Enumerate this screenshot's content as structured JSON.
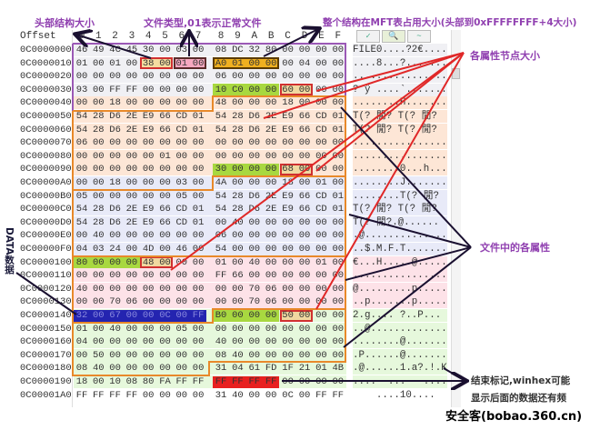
{
  "header": {
    "offset_label": "Offset",
    "columns": [
      "0",
      "1",
      "2",
      "3",
      "4",
      "5",
      "6",
      "7",
      "8",
      "9",
      "A",
      "B",
      "C",
      "D",
      "E",
      "F"
    ]
  },
  "ascii_toolbar": [
    "✓",
    "🔍",
    "~"
  ],
  "rows": [
    {
      "offset": "0C0000000",
      "bytes": [
        "46",
        "49",
        "4C",
        "45",
        "30",
        "00",
        "03",
        "00",
        "08",
        "DC",
        "32",
        "80",
        "00",
        "00",
        "00",
        "00"
      ],
      "ascii": "FILE0....?2€....",
      "bg": "#f0f0f4"
    },
    {
      "offset": "0C0000010",
      "bytes": [
        "01",
        "00",
        "01",
        "00",
        "38",
        "00",
        "01",
        "00",
        "A0",
        "01",
        "00",
        "00",
        "00",
        "04",
        "00",
        "00"
      ],
      "ascii": "....8...?.......",
      "bg": "#f0f0f4"
    },
    {
      "offset": "0C0000020",
      "bytes": [
        "00",
        "00",
        "00",
        "00",
        "00",
        "00",
        "00",
        "00",
        "06",
        "00",
        "00",
        "00",
        "00",
        "00",
        "00",
        "00"
      ],
      "ascii": "................",
      "bg": "#f0f0f4"
    },
    {
      "offset": "0C0000030",
      "bytes": [
        "93",
        "00",
        "FF",
        "FF",
        "00",
        "00",
        "00",
        "00",
        "10",
        "C0",
        "00",
        "00",
        "60",
        "00",
        "00",
        "00"
      ],
      "ascii": "? ÿ ....`.......",
      "bg": "#f0f0f4"
    },
    {
      "offset": "0C0000040",
      "bytes": [
        "00",
        "00",
        "18",
        "00",
        "00",
        "00",
        "00",
        "00",
        "48",
        "00",
        "00",
        "00",
        "18",
        "00",
        "00",
        "00"
      ],
      "ascii": "........H.......",
      "bg": "#fde6d6"
    },
    {
      "offset": "0C0000050",
      "bytes": [
        "54",
        "28",
        "D6",
        "2E",
        "E9",
        "66",
        "CD",
        "01",
        "54",
        "28",
        "D6",
        "2E",
        "E9",
        "66",
        "CD",
        "01"
      ],
      "ascii": "T(? 閒? T(? 閒?",
      "bg": "#fde6d6"
    },
    {
      "offset": "0C0000060",
      "bytes": [
        "54",
        "28",
        "D6",
        "2E",
        "E9",
        "66",
        "CD",
        "01",
        "54",
        "28",
        "D6",
        "2E",
        "E9",
        "66",
        "CD",
        "01"
      ],
      "ascii": "T(? 閒? T(? 閒?",
      "bg": "#fde6d6"
    },
    {
      "offset": "0C0000070",
      "bytes": [
        "06",
        "00",
        "00",
        "00",
        "00",
        "00",
        "00",
        "00",
        "00",
        "00",
        "00",
        "00",
        "00",
        "00",
        "00",
        "00"
      ],
      "ascii": "................",
      "bg": "#fde6d6"
    },
    {
      "offset": "0C0000080",
      "bytes": [
        "00",
        "00",
        "00",
        "00",
        "00",
        "01",
        "00",
        "00",
        "00",
        "00",
        "00",
        "00",
        "00",
        "00",
        "00",
        "00"
      ],
      "ascii": "................",
      "bg": "#fde6d6"
    },
    {
      "offset": "0C0000090",
      "bytes": [
        "00",
        "00",
        "00",
        "00",
        "00",
        "00",
        "00",
        "00",
        "30",
        "00",
        "00",
        "00",
        "68",
        "00",
        "00",
        "00"
      ],
      "ascii": "........0...h...",
      "bg": "#fde6d6"
    },
    {
      "offset": "0C00000A0",
      "bytes": [
        "00",
        "00",
        "18",
        "00",
        "00",
        "00",
        "03",
        "00",
        "4A",
        "00",
        "00",
        "00",
        "18",
        "00",
        "01",
        "00"
      ],
      "ascii": "........J.......",
      "bg": "#e8eaf8"
    },
    {
      "offset": "0C00000B0",
      "bytes": [
        "05",
        "00",
        "00",
        "00",
        "00",
        "00",
        "05",
        "00",
        "54",
        "28",
        "D6",
        "2E",
        "E9",
        "66",
        "CD",
        "01"
      ],
      "ascii": "........T(? 閒?",
      "bg": "#e8eaf8"
    },
    {
      "offset": "0C00000C0",
      "bytes": [
        "54",
        "28",
        "D6",
        "2E",
        "E9",
        "66",
        "CD",
        "01",
        "54",
        "28",
        "D6",
        "2E",
        "E9",
        "66",
        "CD",
        "01"
      ],
      "ascii": "T(? 閒? T(? 閒?",
      "bg": "#e8eaf8"
    },
    {
      "offset": "0C00000D0",
      "bytes": [
        "54",
        "28",
        "D6",
        "2E",
        "E9",
        "66",
        "CD",
        "01",
        "00",
        "40",
        "00",
        "00",
        "00",
        "00",
        "00",
        "00"
      ],
      "ascii": "T(? 閒?.@......",
      "bg": "#e8eaf8"
    },
    {
      "offset": "0C00000E0",
      "bytes": [
        "00",
        "40",
        "00",
        "00",
        "00",
        "00",
        "00",
        "00",
        "06",
        "00",
        "00",
        "00",
        "00",
        "00",
        "00",
        "00"
      ],
      "ascii": ".@..............",
      "bg": "#e8eaf8"
    },
    {
      "offset": "0C00000F0",
      "bytes": [
        "04",
        "03",
        "24",
        "00",
        "4D",
        "00",
        "46",
        "00",
        "54",
        "00",
        "00",
        "00",
        "00",
        "00",
        "00",
        "00"
      ],
      "ascii": "..$.M.F.T.......",
      "bg": "#e8eaf8"
    },
    {
      "offset": "0C0000100",
      "bytes": [
        "80",
        "00",
        "00",
        "00",
        "48",
        "00",
        "00",
        "00",
        "01",
        "00",
        "40",
        "00",
        "00",
        "00",
        "01",
        "00"
      ],
      "ascii": "€...H.....@.....",
      "bg": "#fde2e8"
    },
    {
      "offset": "0C0000110",
      "bytes": [
        "00",
        "00",
        "00",
        "00",
        "00",
        "00",
        "00",
        "00",
        "FF",
        "66",
        "00",
        "00",
        "00",
        "00",
        "00",
        "00"
      ],
      "ascii": "................",
      "bg": "#fde2e8"
    },
    {
      "offset": "0C0000120",
      "bytes": [
        "40",
        "00",
        "00",
        "00",
        "00",
        "00",
        "00",
        "00",
        "00",
        "00",
        "70",
        "06",
        "00",
        "00",
        "00",
        "00"
      ],
      "ascii": "@.........p.....",
      "bg": "#fde2e8"
    },
    {
      "offset": "0C0000130",
      "bytes": [
        "00",
        "00",
        "70",
        "06",
        "00",
        "00",
        "00",
        "00",
        "00",
        "00",
        "70",
        "06",
        "00",
        "00",
        "00",
        "00"
      ],
      "ascii": "..p.......p.....",
      "bg": "#fde2e8"
    },
    {
      "offset": "0C0000140",
      "bytes": [
        "32",
        "00",
        "67",
        "00",
        "00",
        "0C",
        "00",
        "FF",
        "B0",
        "00",
        "00",
        "00",
        "50",
        "00",
        "00",
        "00"
      ],
      "ascii": "2.g.... ?..P...",
      "bg": "#e6f8dc"
    },
    {
      "offset": "0C0000150",
      "bytes": [
        "01",
        "00",
        "40",
        "00",
        "00",
        "00",
        "05",
        "00",
        "00",
        "00",
        "00",
        "00",
        "00",
        "00",
        "00",
        "00"
      ],
      "ascii": "..@.............",
      "bg": "#e6f8dc"
    },
    {
      "offset": "0C0000160",
      "bytes": [
        "04",
        "00",
        "00",
        "00",
        "00",
        "00",
        "00",
        "00",
        "40",
        "00",
        "00",
        "00",
        "00",
        "00",
        "00",
        "00"
      ],
      "ascii": "........@.......",
      "bg": "#e6f8dc"
    },
    {
      "offset": "0C0000170",
      "bytes": [
        "00",
        "50",
        "00",
        "00",
        "00",
        "00",
        "00",
        "00",
        "08",
        "40",
        "00",
        "00",
        "00",
        "00",
        "00",
        "00"
      ],
      "ascii": ".P......@.......",
      "bg": "#e6f8dc"
    },
    {
      "offset": "0C0000180",
      "bytes": [
        "08",
        "40",
        "00",
        "00",
        "00",
        "00",
        "00",
        "00",
        "31",
        "04",
        "61",
        "FD",
        "1F",
        "21",
        "01",
        "4B"
      ],
      "ascii": ".@......1.a?.!.K",
      "bg": "#e6f8dc"
    },
    {
      "offset": "0C0000190",
      "bytes": [
        "18",
        "00",
        "10",
        "08",
        "80",
        "FA",
        "FF",
        "FF",
        "FF",
        "FF",
        "FF",
        "FF",
        "00",
        "00",
        "00",
        "00"
      ],
      "ascii": "....  ...   ....",
      "bg": "#e6f8dc"
    },
    {
      "offset": "0C00001A0",
      "bytes": [
        "FF",
        "FF",
        "FF",
        "FF",
        "00",
        "00",
        "00",
        "00",
        "31",
        "40",
        "00",
        "00",
        "0C",
        "00",
        "FF",
        "FF"
      ],
      "ascii": "    ....10....  ",
      "bg": "#ffffff"
    }
  ],
  "highlights": [
    {
      "row": 1,
      "from": 4,
      "to": 5,
      "fill": "#f5dca0",
      "border": "#d03030"
    },
    {
      "row": 1,
      "from": 6,
      "to": 7,
      "fill": "#f7a8c0",
      "border": "#5a2a2a"
    },
    {
      "row": 1,
      "from": 8,
      "to": 11,
      "fill": "#f0b020",
      "border": "#5a3a00"
    },
    {
      "row": 3,
      "from": 8,
      "to": 11,
      "fill": "#a8d840",
      "border": ""
    },
    {
      "row": 3,
      "from": 12,
      "to": 13,
      "fill": "#f0d8a0",
      "border": "#d03030"
    },
    {
      "row": 9,
      "from": 8,
      "to": 11,
      "fill": "#a8d840",
      "border": ""
    },
    {
      "row": 9,
      "from": 12,
      "to": 13,
      "fill": "#f0d8a0",
      "border": "#d03030"
    },
    {
      "row": 16,
      "from": 0,
      "to": 3,
      "fill": "#a8d840",
      "border": ""
    },
    {
      "row": 16,
      "from": 4,
      "to": 5,
      "fill": "#f0d8a0",
      "border": "#d03030"
    },
    {
      "row": 20,
      "from": 0,
      "to": 7,
      "fill": "#2424b0",
      "border": ""
    },
    {
      "row": 20,
      "from": 8,
      "to": 11,
      "fill": "#a8d840",
      "border": ""
    },
    {
      "row": 20,
      "from": 12,
      "to": 13,
      "fill": "#f0d8a0",
      "border": "#d03030"
    },
    {
      "row": 25,
      "from": 8,
      "to": 11,
      "fill": "#e82020",
      "border": ""
    }
  ],
  "annotations": {
    "header_size": "头部结构大小",
    "file_type": "文件类型,01表示正常文件",
    "record_size": "整个结构在MFT表占用大小(头部到0xFFFFFFFF+4大小)",
    "attr_size": "各属性节点大小",
    "attributes": "文件中的各属性",
    "data": "DATA数据",
    "end_marker_1": "结束标记,winhex可能",
    "end_marker_2": "显示后面的数据还有频"
  },
  "colors": {
    "annotation": "#9040b0",
    "header_outline": "#9b59b6",
    "attr_outline": "#e8892a",
    "arrow_red": "#e02828",
    "arrow_black": "#1a1030"
  },
  "watermark": "安全客(bobao.360.cn)"
}
